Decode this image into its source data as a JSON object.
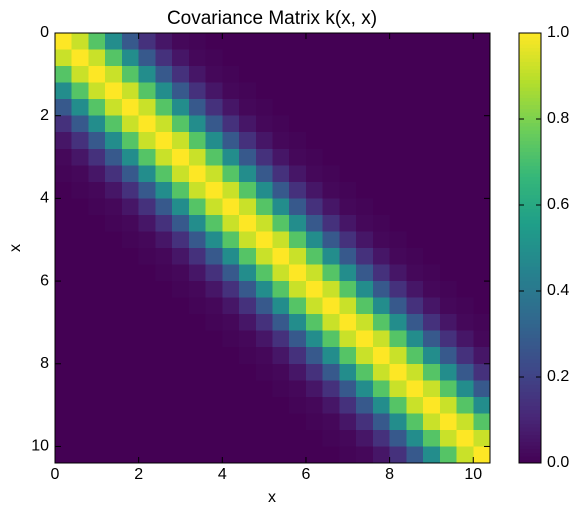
{
  "chart_data": {
    "type": "heatmap",
    "title": "Covariance Matrix k(x, x)",
    "xlabel": "x",
    "ylabel": "x",
    "colormap": "viridis",
    "clim": [
      0,
      1
    ],
    "cbar_ticks": [
      {
        "value": 0,
        "label": "0.0"
      },
      0.2,
      0.4,
      0.6,
      0.8,
      {
        "value": 1,
        "label": "1.0"
      }
    ],
    "x": [
      0,
      0.4,
      0.8,
      1.2,
      1.6,
      2,
      2.4,
      2.8,
      3.2,
      3.6,
      4,
      4.4,
      4.8,
      5.2,
      5.6,
      6,
      6.4,
      6.8,
      7.2,
      7.6,
      8,
      8.4,
      8.8,
      9.2,
      9.6,
      10
    ],
    "y": [
      0,
      0.4,
      0.8,
      1.2,
      1.6,
      2,
      2.4,
      2.8,
      3.2,
      3.6,
      4,
      4.4,
      4.8,
      5.2,
      5.6,
      6,
      6.4,
      6.8,
      7.2,
      7.6,
      8,
      8.4,
      8.8,
      9.2,
      9.6,
      10
    ],
    "xlim": [
      0,
      10.4
    ],
    "ylim": [
      10.4,
      0
    ],
    "xticks": [
      0,
      2,
      4,
      6,
      8,
      10
    ],
    "yticks": [
      0,
      2,
      4,
      6,
      8,
      10
    ],
    "z": [
      [
        1,
        0.92,
        0.73,
        0.49,
        0.28,
        0.14,
        0.06,
        0.02,
        0.01,
        0,
        0,
        0,
        0,
        0,
        0,
        0,
        0,
        0,
        0,
        0,
        0,
        0,
        0,
        0,
        0,
        0
      ],
      [
        0.92,
        1,
        0.92,
        0.73,
        0.49,
        0.28,
        0.14,
        0.06,
        0.02,
        0.01,
        0,
        0,
        0,
        0,
        0,
        0,
        0,
        0,
        0,
        0,
        0,
        0,
        0,
        0,
        0,
        0
      ],
      [
        0.73,
        0.92,
        1,
        0.92,
        0.73,
        0.49,
        0.28,
        0.14,
        0.06,
        0.02,
        0.01,
        0,
        0,
        0,
        0,
        0,
        0,
        0,
        0,
        0,
        0,
        0,
        0,
        0,
        0,
        0
      ],
      [
        0.49,
        0.73,
        0.92,
        1,
        0.92,
        0.73,
        0.49,
        0.28,
        0.14,
        0.06,
        0.02,
        0.01,
        0,
        0,
        0,
        0,
        0,
        0,
        0,
        0,
        0,
        0,
        0,
        0,
        0,
        0
      ],
      [
        0.28,
        0.49,
        0.73,
        0.92,
        1,
        0.92,
        0.73,
        0.49,
        0.28,
        0.14,
        0.06,
        0.02,
        0.01,
        0,
        0,
        0,
        0,
        0,
        0,
        0,
        0,
        0,
        0,
        0,
        0,
        0
      ],
      [
        0.14,
        0.28,
        0.49,
        0.73,
        0.92,
        1,
        0.92,
        0.73,
        0.49,
        0.28,
        0.14,
        0.06,
        0.02,
        0.01,
        0,
        0,
        0,
        0,
        0,
        0,
        0,
        0,
        0,
        0,
        0,
        0
      ],
      [
        0.06,
        0.14,
        0.28,
        0.49,
        0.73,
        0.92,
        1,
        0.92,
        0.73,
        0.49,
        0.28,
        0.14,
        0.06,
        0.02,
        0.01,
        0,
        0,
        0,
        0,
        0,
        0,
        0,
        0,
        0,
        0,
        0
      ],
      [
        0.02,
        0.06,
        0.14,
        0.28,
        0.49,
        0.73,
        0.92,
        1,
        0.92,
        0.73,
        0.49,
        0.28,
        0.14,
        0.06,
        0.02,
        0.01,
        0,
        0,
        0,
        0,
        0,
        0,
        0,
        0,
        0,
        0
      ],
      [
        0.01,
        0.02,
        0.06,
        0.14,
        0.28,
        0.49,
        0.73,
        0.92,
        1,
        0.92,
        0.73,
        0.49,
        0.28,
        0.14,
        0.06,
        0.02,
        0.01,
        0,
        0,
        0,
        0,
        0,
        0,
        0,
        0,
        0
      ],
      [
        0,
        0.01,
        0.02,
        0.06,
        0.14,
        0.28,
        0.49,
        0.73,
        0.92,
        1,
        0.92,
        0.73,
        0.49,
        0.28,
        0.14,
        0.06,
        0.02,
        0.01,
        0,
        0,
        0,
        0,
        0,
        0,
        0,
        0
      ],
      [
        0,
        0,
        0.01,
        0.02,
        0.06,
        0.14,
        0.28,
        0.49,
        0.73,
        0.92,
        1,
        0.92,
        0.73,
        0.49,
        0.28,
        0.14,
        0.06,
        0.02,
        0.01,
        0,
        0,
        0,
        0,
        0,
        0,
        0
      ],
      [
        0,
        0,
        0,
        0.01,
        0.02,
        0.06,
        0.14,
        0.28,
        0.49,
        0.73,
        0.92,
        1,
        0.92,
        0.73,
        0.49,
        0.28,
        0.14,
        0.06,
        0.02,
        0.01,
        0,
        0,
        0,
        0,
        0,
        0
      ],
      [
        0,
        0,
        0,
        0,
        0.01,
        0.02,
        0.06,
        0.14,
        0.28,
        0.49,
        0.73,
        0.92,
        1,
        0.92,
        0.73,
        0.49,
        0.28,
        0.14,
        0.06,
        0.02,
        0.01,
        0,
        0,
        0,
        0,
        0
      ],
      [
        0,
        0,
        0,
        0,
        0,
        0.01,
        0.02,
        0.06,
        0.14,
        0.28,
        0.49,
        0.73,
        0.92,
        1,
        0.92,
        0.73,
        0.49,
        0.28,
        0.14,
        0.06,
        0.02,
        0.01,
        0,
        0,
        0,
        0
      ],
      [
        0,
        0,
        0,
        0,
        0,
        0,
        0.01,
        0.02,
        0.06,
        0.14,
        0.28,
        0.49,
        0.73,
        0.92,
        1,
        0.92,
        0.73,
        0.49,
        0.28,
        0.14,
        0.06,
        0.02,
        0.01,
        0,
        0,
        0
      ],
      [
        0,
        0,
        0,
        0,
        0,
        0,
        0,
        0.01,
        0.02,
        0.06,
        0.14,
        0.28,
        0.49,
        0.73,
        0.92,
        1,
        0.92,
        0.73,
        0.49,
        0.28,
        0.14,
        0.06,
        0.02,
        0.01,
        0,
        0
      ],
      [
        0,
        0,
        0,
        0,
        0,
        0,
        0,
        0,
        0.01,
        0.02,
        0.06,
        0.14,
        0.28,
        0.49,
        0.73,
        0.92,
        1,
        0.92,
        0.73,
        0.49,
        0.28,
        0.14,
        0.06,
        0.02,
        0.01,
        0
      ],
      [
        0,
        0,
        0,
        0,
        0,
        0,
        0,
        0,
        0,
        0.01,
        0.02,
        0.06,
        0.14,
        0.28,
        0.49,
        0.73,
        0.92,
        1,
        0.92,
        0.73,
        0.49,
        0.28,
        0.14,
        0.06,
        0.02,
        0.01
      ],
      [
        0,
        0,
        0,
        0,
        0,
        0,
        0,
        0,
        0,
        0,
        0.01,
        0.02,
        0.06,
        0.14,
        0.28,
        0.49,
        0.73,
        0.92,
        1,
        0.92,
        0.73,
        0.49,
        0.28,
        0.14,
        0.06,
        0.02
      ],
      [
        0,
        0,
        0,
        0,
        0,
        0,
        0,
        0,
        0,
        0,
        0,
        0.01,
        0.02,
        0.06,
        0.14,
        0.28,
        0.49,
        0.73,
        0.92,
        1,
        0.92,
        0.73,
        0.49,
        0.28,
        0.14,
        0.06
      ],
      [
        0,
        0,
        0,
        0,
        0,
        0,
        0,
        0,
        0,
        0,
        0,
        0,
        0.01,
        0.02,
        0.06,
        0.14,
        0.28,
        0.49,
        0.73,
        0.92,
        1,
        0.92,
        0.73,
        0.49,
        0.28,
        0.14
      ],
      [
        0,
        0,
        0,
        0,
        0,
        0,
        0,
        0,
        0,
        0,
        0,
        0,
        0,
        0.01,
        0.02,
        0.06,
        0.14,
        0.28,
        0.49,
        0.73,
        0.92,
        1,
        0.92,
        0.73,
        0.49,
        0.28
      ],
      [
        0,
        0,
        0,
        0,
        0,
        0,
        0,
        0,
        0,
        0,
        0,
        0,
        0,
        0,
        0.01,
        0.02,
        0.06,
        0.14,
        0.28,
        0.49,
        0.73,
        0.92,
        1,
        0.92,
        0.73,
        0.49
      ],
      [
        0,
        0,
        0,
        0,
        0,
        0,
        0,
        0,
        0,
        0,
        0,
        0,
        0,
        0,
        0,
        0.01,
        0.02,
        0.06,
        0.14,
        0.28,
        0.49,
        0.73,
        0.92,
        1,
        0.92,
        0.73
      ],
      [
        0,
        0,
        0,
        0,
        0,
        0,
        0,
        0,
        0,
        0,
        0,
        0,
        0,
        0,
        0,
        0,
        0.01,
        0.02,
        0.06,
        0.14,
        0.28,
        0.49,
        0.73,
        0.92,
        1,
        0.92
      ],
      [
        0,
        0,
        0,
        0,
        0,
        0,
        0,
        0,
        0,
        0,
        0,
        0,
        0,
        0,
        0,
        0,
        0,
        0.01,
        0.02,
        0.06,
        0.14,
        0.28,
        0.49,
        0.73,
        0.92,
        1
      ]
    ]
  }
}
